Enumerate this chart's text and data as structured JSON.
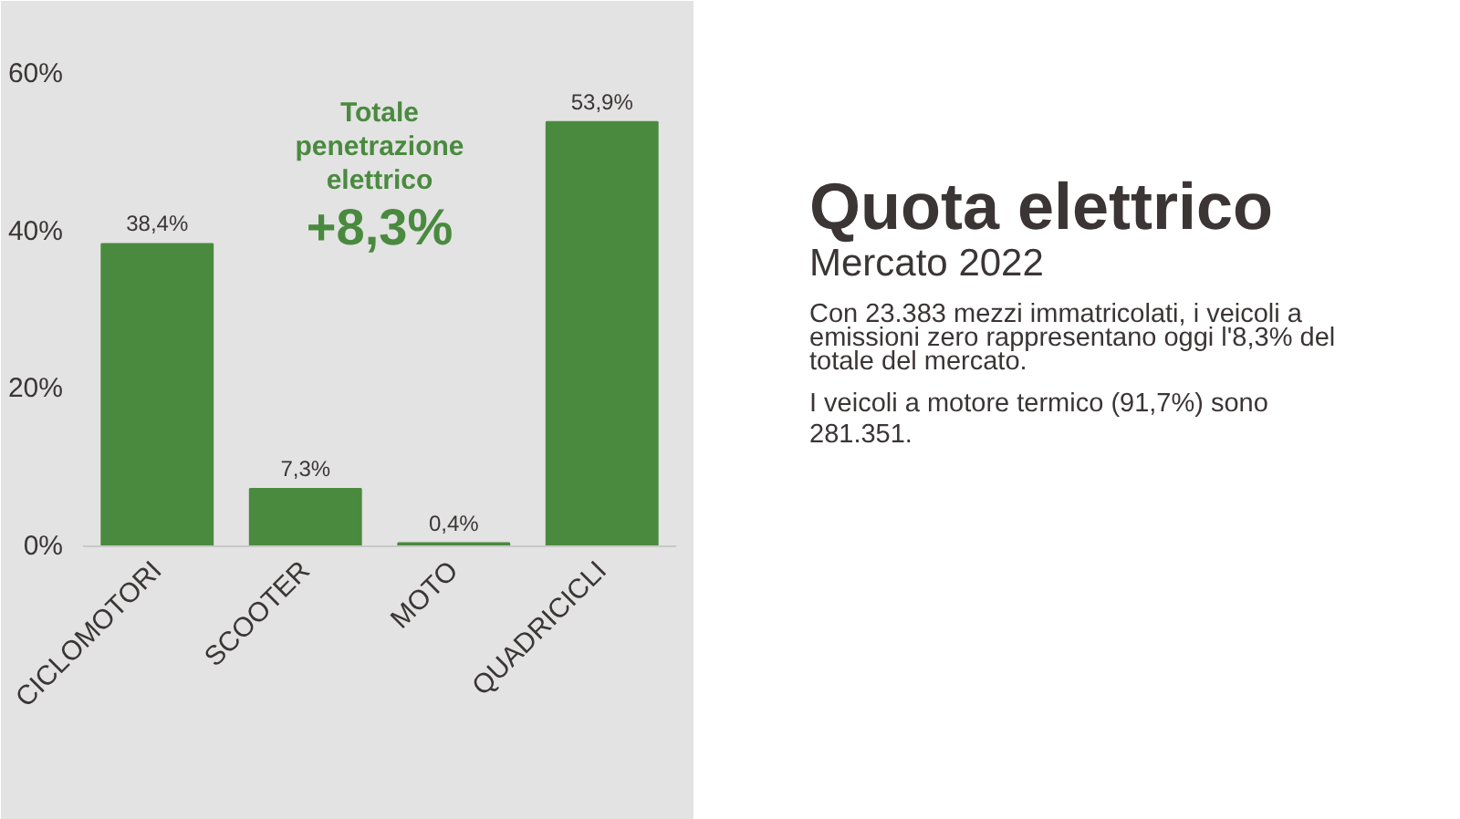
{
  "chart_data": {
    "type": "bar",
    "title": "Quota elettrico",
    "subtitle": "Mercato 2022",
    "categories": [
      "CICLOMOTORI",
      "SCOOTER",
      "MOTO",
      "QUADRICICLI"
    ],
    "values": [
      38.4,
      7.3,
      0.4,
      53.9
    ],
    "value_labels": [
      "38,4%",
      "7,3%",
      "0,4%",
      "53,9%"
    ],
    "color": "#4a8a3f",
    "ylim": [
      0,
      60
    ],
    "yticks": [
      {
        "value": 0,
        "label": "0%"
      },
      {
        "value": 20,
        "label": "20%"
      },
      {
        "value": 40,
        "label": "40%"
      },
      {
        "value": 60,
        "label": "60%"
      }
    ],
    "annotations": [
      "Totale penetrazione elettrico +8,3%",
      "Con 23.383 mezzi immatricolati, i veicoli a emissioni zero rappresentano oggi l'8,3% del totale del mercato.",
      "I veicoli a motore termico (91,7%) sono 281.351."
    ]
  }
}
